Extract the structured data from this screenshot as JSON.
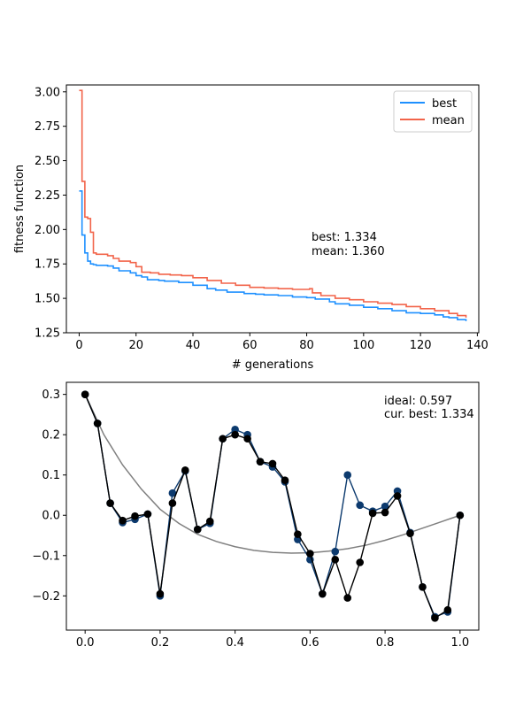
{
  "chart_data": [
    {
      "type": "line",
      "xlabel": "# generations",
      "ylabel": "fitness function",
      "xlim": [
        -4.5,
        140.5
      ],
      "ylim": [
        1.25,
        3.05
      ],
      "xticks": [
        0,
        20,
        40,
        60,
        80,
        100,
        120,
        140
      ],
      "yticks": [
        1.25,
        1.5,
        1.75,
        2.0,
        2.25,
        2.5,
        2.75,
        3.0
      ],
      "ytick_labels": [
        "1.25",
        "1.50",
        "1.75",
        "2.00",
        "2.25",
        "2.50",
        "2.75",
        "3.00"
      ],
      "grid": false,
      "legend": "top-right",
      "annotation": [
        "best: 1.334",
        "mean: 1.360"
      ],
      "series": [
        {
          "name": "best",
          "color": "#1e90ff",
          "x": [
            0,
            1,
            2,
            3,
            4,
            5,
            6,
            8,
            10,
            12,
            14,
            18,
            20,
            22,
            24,
            28,
            30,
            35,
            40,
            45,
            48,
            52,
            58,
            62,
            65,
            70,
            75,
            80,
            83,
            88,
            90,
            95,
            100,
            105,
            110,
            115,
            120,
            125,
            128,
            130,
            133,
            136
          ],
          "y": [
            2.28,
            1.96,
            1.83,
            1.77,
            1.75,
            1.745,
            1.74,
            1.74,
            1.735,
            1.72,
            1.7,
            1.685,
            1.665,
            1.655,
            1.635,
            1.63,
            1.625,
            1.615,
            1.595,
            1.57,
            1.56,
            1.545,
            1.535,
            1.53,
            1.525,
            1.52,
            1.51,
            1.505,
            1.495,
            1.475,
            1.46,
            1.45,
            1.435,
            1.425,
            1.41,
            1.395,
            1.39,
            1.38,
            1.365,
            1.36,
            1.345,
            1.334
          ]
        },
        {
          "name": "mean",
          "color": "#f2644a",
          "x": [
            0,
            1,
            2,
            3,
            4,
            5,
            6,
            8,
            10,
            12,
            14,
            18,
            20,
            22,
            25,
            28,
            32,
            36,
            40,
            45,
            50,
            55,
            60,
            65,
            70,
            75,
            80,
            81,
            82,
            85,
            90,
            95,
            100,
            105,
            110,
            115,
            120,
            125,
            130,
            133,
            136
          ],
          "y": [
            3.01,
            2.35,
            2.09,
            2.08,
            1.98,
            1.83,
            1.82,
            1.82,
            1.81,
            1.79,
            1.77,
            1.76,
            1.73,
            1.69,
            1.685,
            1.675,
            1.67,
            1.665,
            1.65,
            1.63,
            1.61,
            1.595,
            1.58,
            1.575,
            1.57,
            1.565,
            1.565,
            1.57,
            1.54,
            1.52,
            1.5,
            1.49,
            1.475,
            1.465,
            1.455,
            1.44,
            1.425,
            1.41,
            1.39,
            1.375,
            1.36
          ]
        }
      ]
    },
    {
      "type": "line",
      "xlabel": "",
      "ylabel": "",
      "xlim": [
        -0.05,
        1.05
      ],
      "ylim": [
        -0.285,
        0.33
      ],
      "xticks": [
        0.0,
        0.2,
        0.4,
        0.6,
        0.8,
        1.0
      ],
      "xtick_labels": [
        "0.0",
        "0.2",
        "0.4",
        "0.6",
        "0.8",
        "1.0"
      ],
      "yticks": [
        -0.2,
        -0.1,
        0.0,
        0.1,
        0.2,
        0.3
      ],
      "ytick_labels": [
        "−0.2",
        "−0.1",
        "0.0",
        "0.1",
        "0.2",
        "0.3"
      ],
      "grid": false,
      "annotation": [
        "ideal: 0.597",
        "cur. best: 1.334"
      ],
      "series": [
        {
          "color": "#808080",
          "style": "curve",
          "x": [
            0.0,
            0.05,
            0.1,
            0.15,
            0.2,
            0.25,
            0.3,
            0.35,
            0.4,
            0.45,
            0.5,
            0.55,
            0.6,
            0.65,
            0.7,
            0.75,
            0.8,
            0.85,
            0.9,
            0.95,
            1.0
          ],
          "y": [
            0.3,
            0.2,
            0.125,
            0.065,
            0.015,
            -0.02,
            -0.047,
            -0.065,
            -0.078,
            -0.087,
            -0.092,
            -0.094,
            -0.093,
            -0.089,
            -0.083,
            -0.074,
            -0.062,
            -0.048,
            -0.032,
            -0.016,
            0.0
          ]
        },
        {
          "color": "#0c3a6e",
          "style": "markers",
          "x": [
            0.0,
            0.033,
            0.067,
            0.1,
            0.133,
            0.167,
            0.2,
            0.233,
            0.267,
            0.3,
            0.333,
            0.367,
            0.4,
            0.433,
            0.467,
            0.5,
            0.533,
            0.567,
            0.6,
            0.633,
            0.667,
            0.7,
            0.733,
            0.767,
            0.8,
            0.833,
            0.867,
            0.9,
            0.933,
            0.967,
            1.0
          ],
          "y": [
            0.3,
            0.228,
            0.03,
            -0.018,
            -0.01,
            0.003,
            -0.2,
            0.055,
            0.11,
            -0.035,
            -0.02,
            0.19,
            0.213,
            0.2,
            0.133,
            0.12,
            0.083,
            -0.06,
            -0.11,
            -0.195,
            -0.09,
            0.1,
            0.025,
            0.01,
            0.022,
            0.06,
            -0.043,
            -0.178,
            -0.252,
            -0.24,
            0.0
          ]
        },
        {
          "color": "#000000",
          "style": "markers",
          "x": [
            0.0,
            0.033,
            0.067,
            0.1,
            0.133,
            0.167,
            0.2,
            0.233,
            0.267,
            0.3,
            0.333,
            0.367,
            0.4,
            0.433,
            0.467,
            0.5,
            0.533,
            0.567,
            0.6,
            0.633,
            0.667,
            0.7,
            0.733,
            0.767,
            0.8,
            0.833,
            0.867,
            0.9,
            0.933,
            0.967,
            1.0
          ],
          "y": [
            0.3,
            0.228,
            0.03,
            -0.013,
            -0.002,
            0.003,
            -0.195,
            0.03,
            0.112,
            -0.035,
            -0.015,
            0.19,
            0.2,
            0.19,
            0.133,
            0.128,
            0.087,
            -0.047,
            -0.095,
            -0.195,
            -0.11,
            -0.205,
            -0.117,
            0.005,
            0.007,
            0.048,
            -0.045,
            -0.178,
            -0.255,
            -0.235,
            0.0
          ]
        }
      ]
    }
  ]
}
